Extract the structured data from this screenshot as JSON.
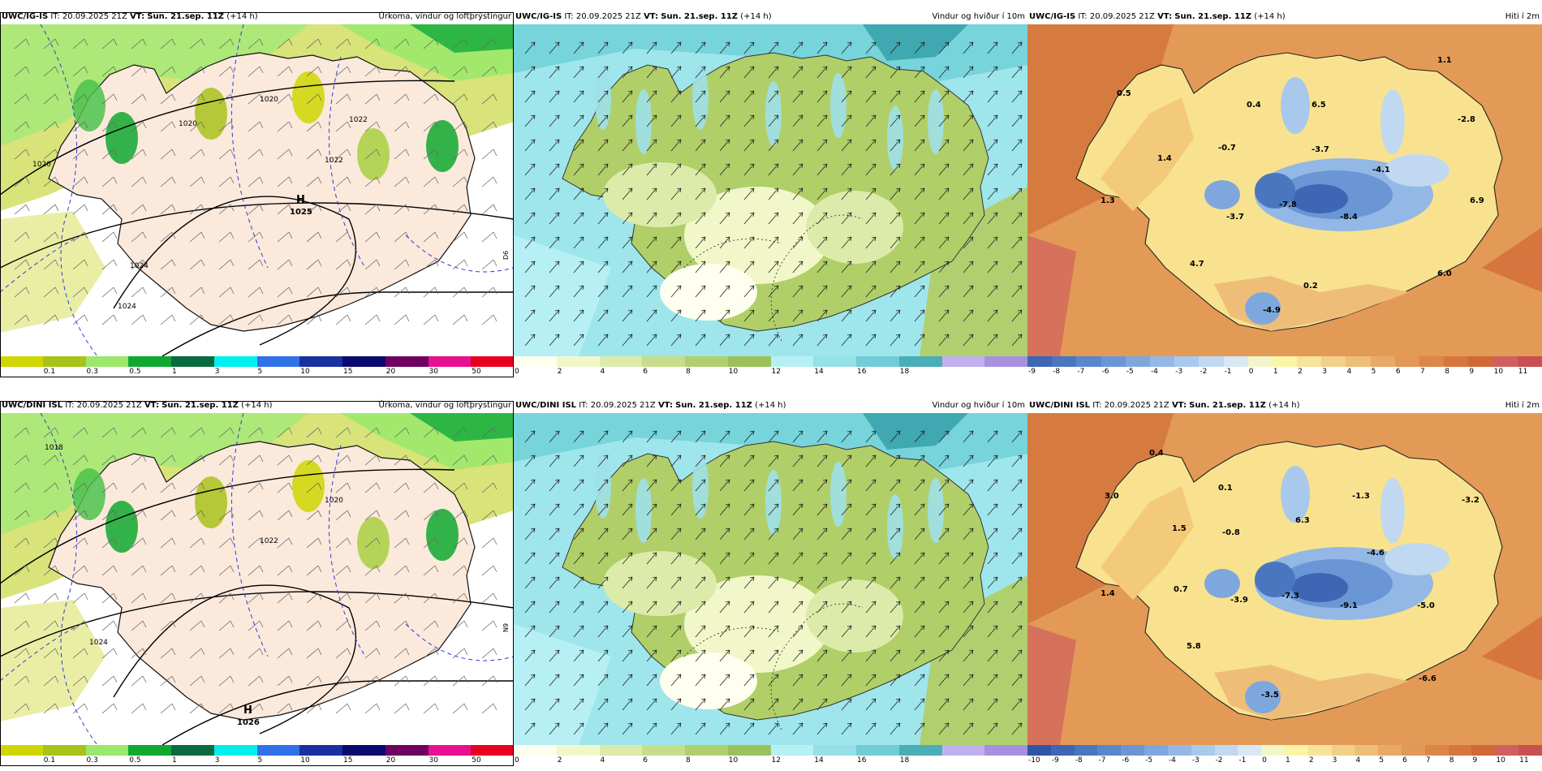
{
  "rows": [
    {
      "model": "UWC/IG-IS",
      "panels": [
        {
          "id": "precip",
          "init_prefix": "IT: 20.09.2025 21Z",
          "vt_label": "VT:",
          "vt_value": "Sun. 21.sep. 11Z",
          "lead": "(+14 h)",
          "title": "Úrkoma, vindur og loftþrýstingur",
          "iso_labels": [
            "1020",
            "1020",
            "1022",
            "1020",
            "1024",
            "1024",
            "1022"
          ],
          "high_letter": "H",
          "high_value": "1025",
          "side_label": "D6"
        },
        {
          "id": "wind",
          "init_prefix": "IT: 20.09.2025 21Z",
          "vt_label": "VT:",
          "vt_value": "Sun. 21.sep. 11Z",
          "lead": "(+14 h)",
          "title": "Vindur og hviður í 10m"
        },
        {
          "id": "temp",
          "init_prefix": "IT: 20.09.2025 21Z",
          "vt_label": "VT:",
          "vt_value": "Sun. 21.sep. 11Z",
          "lead": "(+14 h)",
          "title": "Hiti í 2m",
          "temps": [
            "0.5",
            "1.1",
            "0.4",
            "6.5",
            "-2.8",
            "1.4",
            "-0.7",
            "-3.7",
            "-4.1",
            "1.3",
            "-7.8",
            "-3.7",
            "-8.4",
            "6.9",
            "4.7",
            "6.0",
            "0.2",
            "-4.9"
          ]
        }
      ]
    },
    {
      "model": "UWC/DINI ISL",
      "panels": [
        {
          "id": "precip",
          "init_prefix": "IT: 20.09.2025 21Z",
          "vt_label": "VT:",
          "vt_value": "Sun. 21.sep. 11Z",
          "lead": "(+14 h)",
          "title": "Úrkoma, vindur og loftþrýstingur",
          "iso_labels": [
            "1018",
            "1020",
            "1022",
            "1024"
          ],
          "high_letter": "H",
          "high_value": "1026",
          "side_label": "N9"
        },
        {
          "id": "wind",
          "init_prefix": "IT: 20.09.2025 21Z",
          "vt_label": "VT:",
          "vt_value": "Sun. 21.sep. 11Z",
          "lead": "(+14 h)",
          "title": "Vindur og hviður í 10m"
        },
        {
          "id": "temp",
          "init_prefix": "IT: 20.09.2025 21Z",
          "vt_label": "VT:",
          "vt_value": "Sun. 21.sep. 11Z",
          "lead": "(+14 h)",
          "title": "Hiti í 2m",
          "temps": [
            "0.4",
            "0.1",
            "-1.3",
            "3.0",
            "6.3",
            "-3.2",
            "1.5",
            "-0.8",
            "-4.6",
            "1.4",
            "0.7",
            "-3.9",
            "-7.3",
            "-9.1",
            "-5.0",
            "5.8",
            "-6.6",
            "-3.5"
          ]
        }
      ]
    }
  ],
  "scales": {
    "precip": {
      "ticks": [
        "0.1",
        "0.3",
        "0.5",
        "1",
        "3",
        "5",
        "10",
        "15",
        "20",
        "30",
        "50"
      ],
      "colors": [
        "#cfd600",
        "#a8c21a",
        "#9be86a",
        "#10a830",
        "#0a6a40",
        "#00f0f0",
        "#3070e8",
        "#1830a0",
        "#0a0a70",
        "#700060",
        "#e81090",
        "#e80020"
      ]
    },
    "wind": {
      "ticks": [
        "0",
        "2",
        "4",
        "6",
        "8",
        "10",
        "12",
        "14",
        "16",
        "18"
      ],
      "colors": [
        "#fffff0",
        "#f2f7c9",
        "#dcebaa",
        "#c6de8c",
        "#b0d070",
        "#9bc25a",
        "#b6f0f4",
        "#96e0e8",
        "#72ccd6",
        "#4aaeb6",
        "#c0b0f0",
        "#a890e0"
      ]
    },
    "temp_top": {
      "ticks": [
        "-9",
        "-8",
        "-7",
        "-6",
        "-5",
        "-4",
        "-3",
        "-2",
        "-1",
        "0",
        "1",
        "2",
        "3",
        "4",
        "5",
        "6",
        "7",
        "8",
        "9",
        "10",
        "11"
      ],
      "colors": [
        "#3d66b5",
        "#4a76c0",
        "#5a86cb",
        "#6b96d5",
        "#7ea7dd",
        "#93b8e5",
        "#a9c9ec",
        "#c0d9f1",
        "#d8e8f4",
        "#f3f6c8",
        "#fdf5a6",
        "#f8e39a",
        "#f2d08a",
        "#eebe78",
        "#e8aa66",
        "#e29856",
        "#dc8648",
        "#d6763e",
        "#d06838",
        "#d06060",
        "#c85050"
      ]
    },
    "temp_bottom": {
      "ticks": [
        "-10",
        "-9",
        "-8",
        "-7",
        "-6",
        "-5",
        "-4",
        "-3",
        "-2",
        "-1",
        "0",
        "1",
        "2",
        "3",
        "4",
        "5",
        "6",
        "7",
        "8",
        "9",
        "10",
        "11"
      ],
      "colors": [
        "#2f55a8",
        "#3d66b5",
        "#4a76c0",
        "#5a86cb",
        "#6b96d5",
        "#7ea7dd",
        "#93b8e5",
        "#a9c9ec",
        "#c0d9f1",
        "#d8e8f4",
        "#f3f6c8",
        "#fdf5a6",
        "#f8e39a",
        "#f2d08a",
        "#eebe78",
        "#e8aa66",
        "#e29856",
        "#dc8648",
        "#d6763e",
        "#d06838",
        "#d06060",
        "#c85050"
      ]
    }
  }
}
